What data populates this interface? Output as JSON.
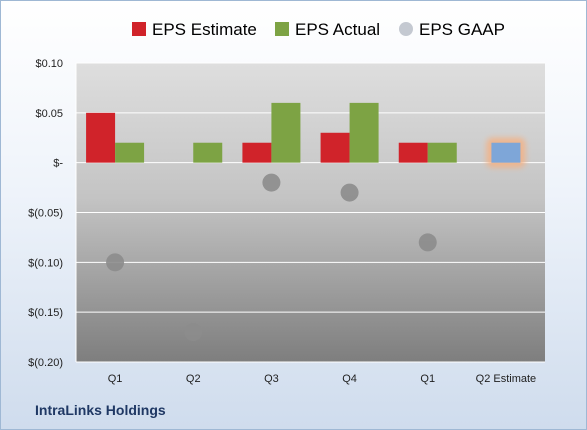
{
  "chart_data": {
    "type": "bar",
    "categories": [
      "Q1",
      "Q2",
      "Q3",
      "Q4",
      "Q1",
      "Q2 Estimate"
    ],
    "series": [
      {
        "name": "EPS Estimate",
        "color": "#d0232a",
        "values": [
          0.05,
          null,
          0.02,
          0.03,
          0.02,
          null
        ]
      },
      {
        "name": "EPS Actual",
        "color": "#7da344",
        "values": [
          0.02,
          0.02,
          0.06,
          0.06,
          0.02,
          null
        ]
      },
      {
        "name": "EPS GAAP",
        "marker": "circle",
        "color": "#8c8c8c",
        "values": [
          -0.1,
          -0.17,
          -0.02,
          -0.03,
          -0.08,
          null
        ]
      }
    ],
    "highlighted_estimate": {
      "category": "Q2 Estimate",
      "value": 0.02,
      "color": "#7ea6d8",
      "glow_color": "#f4b183"
    },
    "yticks": [
      0.1,
      0.05,
      0,
      -0.05,
      -0.1,
      -0.15,
      -0.2
    ],
    "ytick_labels": [
      "$0.10",
      "$0.05",
      "$-",
      "$(0.05)",
      "$(0.10)",
      "$(0.15)",
      "$(0.20)"
    ],
    "ylim": [
      -0.2,
      0.1
    ],
    "grid": true,
    "legend_position": "top"
  },
  "footer": {
    "company": "IntraLinks Holdings"
  }
}
